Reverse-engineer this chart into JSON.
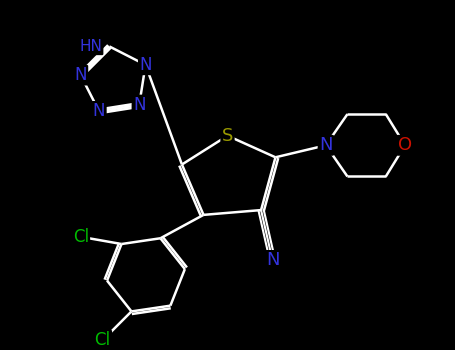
{
  "background_color": "#000000",
  "atom_colors": {
    "N": "#3333dd",
    "S": "#999900",
    "O": "#cc1100",
    "Cl": "#00bb00",
    "C": "#ffffff",
    "H": "#ffffff"
  },
  "bond_color": "#ffffff",
  "bond_width": 1.8,
  "fig_width": 4.55,
  "fig_height": 3.5,
  "dpi": 100
}
